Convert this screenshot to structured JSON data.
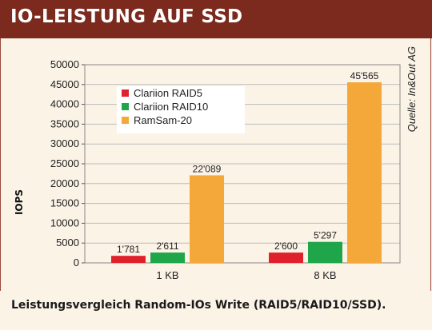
{
  "header": {
    "title": "IO-LEISTUNG AUF SSD"
  },
  "source": "Quelle: In&Out AG",
  "caption": "Leistungsvergleich Random-IOs Write (RAID5/RAID10/SSD).",
  "chart_data": {
    "type": "bar",
    "categories": [
      "1 KB",
      "8 KB"
    ],
    "series": [
      {
        "name": "Clariion RAID5",
        "values": [
          1781,
          2600
        ],
        "labels": [
          "1'781",
          "2'600"
        ],
        "color": "#e0212c"
      },
      {
        "name": "Clariion RAID10",
        "values": [
          2611,
          5297
        ],
        "labels": [
          "2'611",
          "5'297"
        ],
        "color": "#1fa64a"
      },
      {
        "name": "RamSam-20",
        "values": [
          22089,
          45565
        ],
        "labels": [
          "22'089",
          "45'565"
        ],
        "color": "#f5a83a"
      }
    ],
    "ylabel": "IOPS",
    "ylim": [
      0,
      50000
    ],
    "yticks": [
      0,
      5000,
      10000,
      15000,
      20000,
      25000,
      30000,
      35000,
      40000,
      45000,
      50000
    ],
    "grid": true,
    "legend": "upper-left"
  }
}
